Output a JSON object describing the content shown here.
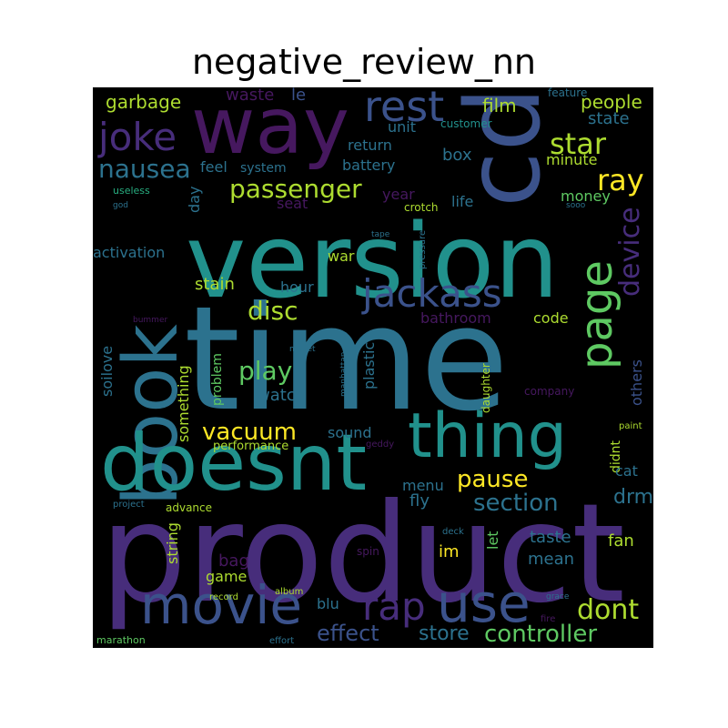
{
  "title": "negative_review_nn",
  "palette": {
    "background": "#000000",
    "dark_purple": "#46185f",
    "purple": "#472d7b",
    "indigo": "#3b528b",
    "blue": "#2c728e",
    "teal": "#21918c",
    "green": "#28ae80",
    "light_green": "#5ec962",
    "lime": "#addc30",
    "yellow": "#fde725"
  },
  "words": [
    {
      "id": "product",
      "text": "product",
      "color": "#472d7b",
      "vertical": false
    },
    {
      "id": "time",
      "text": "time",
      "color": "#2c728e",
      "vertical": false
    },
    {
      "id": "version",
      "text": "version",
      "color": "#21918c",
      "vertical": false
    },
    {
      "id": "cd",
      "text": "cd",
      "color": "#3b528b",
      "vertical": true
    },
    {
      "id": "way",
      "text": "way",
      "color": "#46185f",
      "vertical": false
    },
    {
      "id": "book",
      "text": "book",
      "color": "#2c728e",
      "vertical": true
    },
    {
      "id": "doesnt",
      "text": "doesnt",
      "color": "#21918c",
      "vertical": false
    },
    {
      "id": "thing",
      "text": "thing",
      "color": "#21918c",
      "vertical": false
    },
    {
      "id": "movie",
      "text": "movie",
      "color": "#3b528b",
      "vertical": false
    },
    {
      "id": "use",
      "text": "use",
      "color": "#3b528b",
      "vertical": false
    },
    {
      "id": "rest",
      "text": "rest",
      "color": "#3b528b",
      "vertical": false
    },
    {
      "id": "page",
      "text": "page",
      "color": "#5ec962",
      "vertical": true
    },
    {
      "id": "joke",
      "text": "joke",
      "color": "#472d7b",
      "vertical": false
    },
    {
      "id": "jackass",
      "text": "jackass",
      "color": "#3b528b",
      "vertical": false
    },
    {
      "id": "rap",
      "text": "rap",
      "color": "#472d7b",
      "vertical": false
    },
    {
      "id": "star",
      "text": "star",
      "color": "#addc30",
      "vertical": false
    },
    {
      "id": "ray",
      "text": "ray",
      "color": "#fde725",
      "vertical": false
    },
    {
      "id": "nausea",
      "text": "nausea",
      "color": "#2c728e",
      "vertical": false
    },
    {
      "id": "passenger",
      "text": "passenger",
      "color": "#addc30",
      "vertical": false
    },
    {
      "id": "device",
      "text": "device",
      "color": "#472d7b",
      "vertical": true
    },
    {
      "id": "disc",
      "text": "disc",
      "color": "#addc30",
      "vertical": false
    },
    {
      "id": "play",
      "text": "play",
      "color": "#5ec962",
      "vertical": false
    },
    {
      "id": "vacuum",
      "text": "vacuum",
      "color": "#fde725",
      "vertical": false
    },
    {
      "id": "pause",
      "text": "pause",
      "color": "#fde725",
      "vertical": false
    },
    {
      "id": "section",
      "text": "section",
      "color": "#2c728e",
      "vertical": false
    },
    {
      "id": "dont",
      "text": "dont",
      "color": "#addc30",
      "vertical": false
    },
    {
      "id": "controller",
      "text": "controller",
      "color": "#5ec962",
      "vertical": false
    },
    {
      "id": "effect",
      "text": "effect",
      "color": "#3b528b",
      "vertical": false
    },
    {
      "id": "store",
      "text": "store",
      "color": "#2c728e",
      "vertical": false
    },
    {
      "id": "drm",
      "text": "drm",
      "color": "#2c728e",
      "vertical": false
    },
    {
      "id": "film",
      "text": "film",
      "color": "#addc30",
      "vertical": false
    },
    {
      "id": "people",
      "text": "people",
      "color": "#addc30",
      "vertical": false
    },
    {
      "id": "state",
      "text": "state",
      "color": "#2c728e",
      "vertical": false
    },
    {
      "id": "garbage",
      "text": "garbage",
      "color": "#addc30",
      "vertical": false
    },
    {
      "id": "waste",
      "text": "waste",
      "color": "#46185f",
      "vertical": false
    },
    {
      "id": "le",
      "text": "le",
      "color": "#3b528b",
      "vertical": false
    },
    {
      "id": "unit",
      "text": "unit",
      "color": "#2c728e",
      "vertical": false
    },
    {
      "id": "customer",
      "text": "customer",
      "color": "#21918c",
      "vertical": false
    },
    {
      "id": "feature",
      "text": "feature",
      "color": "#2c728e",
      "vertical": false
    },
    {
      "id": "return",
      "text": "return",
      "color": "#2c728e",
      "vertical": false
    },
    {
      "id": "box",
      "text": "box",
      "color": "#2c728e",
      "vertical": false
    },
    {
      "id": "minute",
      "text": "minute",
      "color": "#addc30",
      "vertical": false
    },
    {
      "id": "feel",
      "text": "feel",
      "color": "#2c728e",
      "vertical": false
    },
    {
      "id": "system",
      "text": "system",
      "color": "#2c728e",
      "vertical": false
    },
    {
      "id": "battery",
      "text": "battery",
      "color": "#2c728e",
      "vertical": false
    },
    {
      "id": "year",
      "text": "year",
      "color": "#46185f",
      "vertical": false
    },
    {
      "id": "money",
      "text": "money",
      "color": "#5ec962",
      "vertical": false
    },
    {
      "id": "useless",
      "text": "useless",
      "color": "#28ae80",
      "vertical": false
    },
    {
      "id": "god",
      "text": "god",
      "color": "#2c728e",
      "vertical": false
    },
    {
      "id": "crotch",
      "text": "crotch",
      "color": "#addc30",
      "vertical": false
    },
    {
      "id": "sooo",
      "text": "sooo",
      "color": "#2c728e",
      "vertical": false
    },
    {
      "id": "day",
      "text": "day",
      "color": "#2c728e",
      "vertical": true
    },
    {
      "id": "seat",
      "text": "seat",
      "color": "#46185f",
      "vertical": false
    },
    {
      "id": "life",
      "text": "life",
      "color": "#2c728e",
      "vertical": false
    },
    {
      "id": "tape",
      "text": "tape",
      "color": "#2c728e",
      "vertical": false
    },
    {
      "id": "pressure",
      "text": "pressure",
      "color": "#2c728e",
      "vertical": true
    },
    {
      "id": "activation",
      "text": "activation",
      "color": "#2c728e",
      "vertical": false
    },
    {
      "id": "war",
      "text": "war",
      "color": "#addc30",
      "vertical": false
    },
    {
      "id": "stain",
      "text": "stain",
      "color": "#addc30",
      "vertical": false
    },
    {
      "id": "hour",
      "text": "hour",
      "color": "#2c728e",
      "vertical": false
    },
    {
      "id": "bathroom",
      "text": "bathroom",
      "color": "#46185f",
      "vertical": false
    },
    {
      "id": "code",
      "text": "code",
      "color": "#addc30",
      "vertical": false
    },
    {
      "id": "soilove",
      "text": "soilove",
      "color": "#2c728e",
      "vertical": true
    },
    {
      "id": "bummer",
      "text": "bummer",
      "color": "#46185f",
      "vertical": false
    },
    {
      "id": "mullet",
      "text": "mullet",
      "color": "#2c728e",
      "vertical": false
    },
    {
      "id": "something",
      "text": "something",
      "color": "#addc30",
      "vertical": true
    },
    {
      "id": "problem",
      "text": "problem",
      "color": "#5ec962",
      "vertical": true
    },
    {
      "id": "plastic",
      "text": "plastic",
      "color": "#2c728e",
      "vertical": true
    },
    {
      "id": "manhattan",
      "text": "manhattan",
      "color": "#2c728e",
      "vertical": true
    },
    {
      "id": "daughter",
      "text": "daughter",
      "color": "#addc30",
      "vertical": true
    },
    {
      "id": "company",
      "text": "company",
      "color": "#46185f",
      "vertical": false
    },
    {
      "id": "others",
      "text": "others",
      "color": "#3b528b",
      "vertical": true
    },
    {
      "id": "watch",
      "text": "watch",
      "color": "#2c728e",
      "vertical": false
    },
    {
      "id": "sound",
      "text": "sound",
      "color": "#2c728e",
      "vertical": false
    },
    {
      "id": "geddy",
      "text": "geddy",
      "color": "#46185f",
      "vertical": false
    },
    {
      "id": "performance",
      "text": "performance",
      "color": "#addc30",
      "vertical": false
    },
    {
      "id": "didnt",
      "text": "didnt",
      "color": "#addc30",
      "vertical": true
    },
    {
      "id": "paint",
      "text": "paint",
      "color": "#addc30",
      "vertical": false
    },
    {
      "id": "cat",
      "text": "cat",
      "color": "#2c728e",
      "vertical": false
    },
    {
      "id": "menu",
      "text": "menu",
      "color": "#2c728e",
      "vertical": false
    },
    {
      "id": "fly",
      "text": "fly",
      "color": "#2c728e",
      "vertical": false
    },
    {
      "id": "project",
      "text": "project",
      "color": "#2c728e",
      "vertical": false
    },
    {
      "id": "advance",
      "text": "advance",
      "color": "#addc30",
      "vertical": false
    },
    {
      "id": "taste",
      "text": "taste",
      "color": "#2c728e",
      "vertical": false
    },
    {
      "id": "fan",
      "text": "fan",
      "color": "#addc30",
      "vertical": false
    },
    {
      "id": "string",
      "text": "string",
      "color": "#addc30",
      "vertical": true
    },
    {
      "id": "bag",
      "text": "bag",
      "color": "#46185f",
      "vertical": false
    },
    {
      "id": "im",
      "text": "im",
      "color": "#fde725",
      "vertical": false
    },
    {
      "id": "let",
      "text": "let",
      "color": "#5ec962",
      "vertical": true
    },
    {
      "id": "mean",
      "text": "mean",
      "color": "#2c728e",
      "vertical": false
    },
    {
      "id": "deck",
      "text": "deck",
      "color": "#2c728e",
      "vertical": false
    },
    {
      "id": "spin",
      "text": "spin",
      "color": "#46185f",
      "vertical": false
    },
    {
      "id": "game",
      "text": "game",
      "color": "#addc30",
      "vertical": false
    },
    {
      "id": "blu",
      "text": "blu",
      "color": "#2c728e",
      "vertical": false
    },
    {
      "id": "record",
      "text": "record",
      "color": "#addc30",
      "vertical": false
    },
    {
      "id": "album",
      "text": "album",
      "color": "#addc30",
      "vertical": false
    },
    {
      "id": "grace",
      "text": "grace",
      "color": "#2c728e",
      "vertical": false
    },
    {
      "id": "fire",
      "text": "fire",
      "color": "#46185f",
      "vertical": false
    },
    {
      "id": "marathon",
      "text": "marathon",
      "color": "#5ec962",
      "vertical": false
    },
    {
      "id": "effort",
      "text": "effort",
      "color": "#2c728e",
      "vertical": false
    }
  ]
}
